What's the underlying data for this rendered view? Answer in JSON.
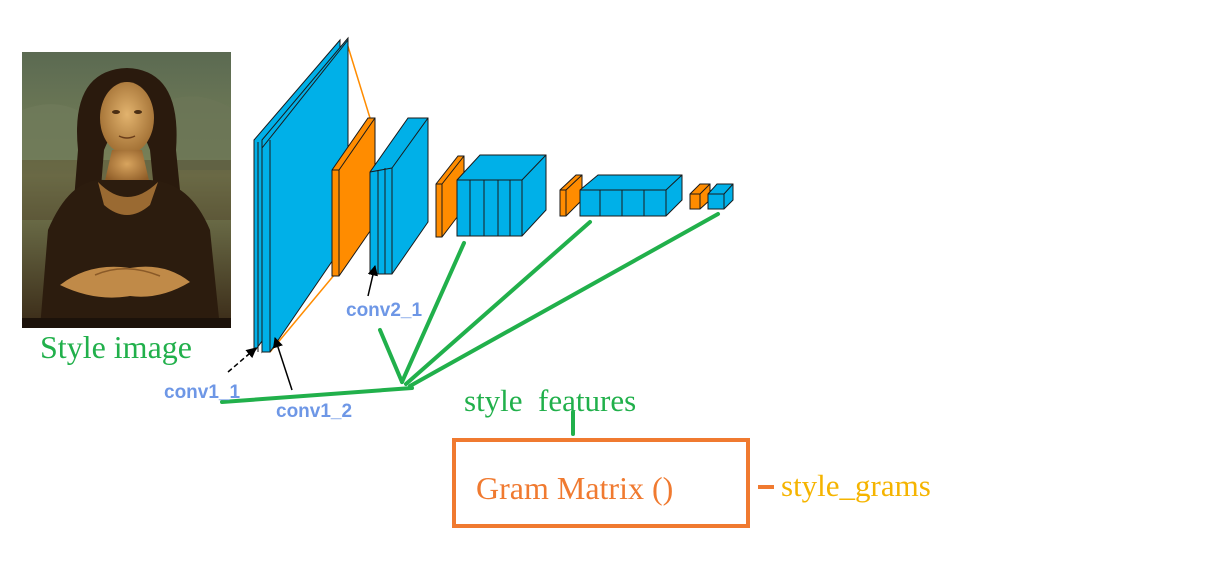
{
  "labels": {
    "style_image": "Style image",
    "conv1_1": "conv1_1",
    "conv1_2": "conv1_2",
    "conv2_1": "conv2_1",
    "style_features": "style  features",
    "gram_matrix": "Gram Matrix ()",
    "style_grams": "style_grams"
  },
  "colors": {
    "conv_blue": "#00b0e8",
    "pool_orange": "#ff8c00",
    "connector_green": "#21b04b",
    "label_green": "#21b04b",
    "layer_label_blue": "#6e97e6",
    "gram_orange": "#f07a30",
    "output_gold": "#f5b400",
    "text_black": "#000000"
  },
  "image": {
    "subject": "portrait painting (Mona Lisa)"
  }
}
